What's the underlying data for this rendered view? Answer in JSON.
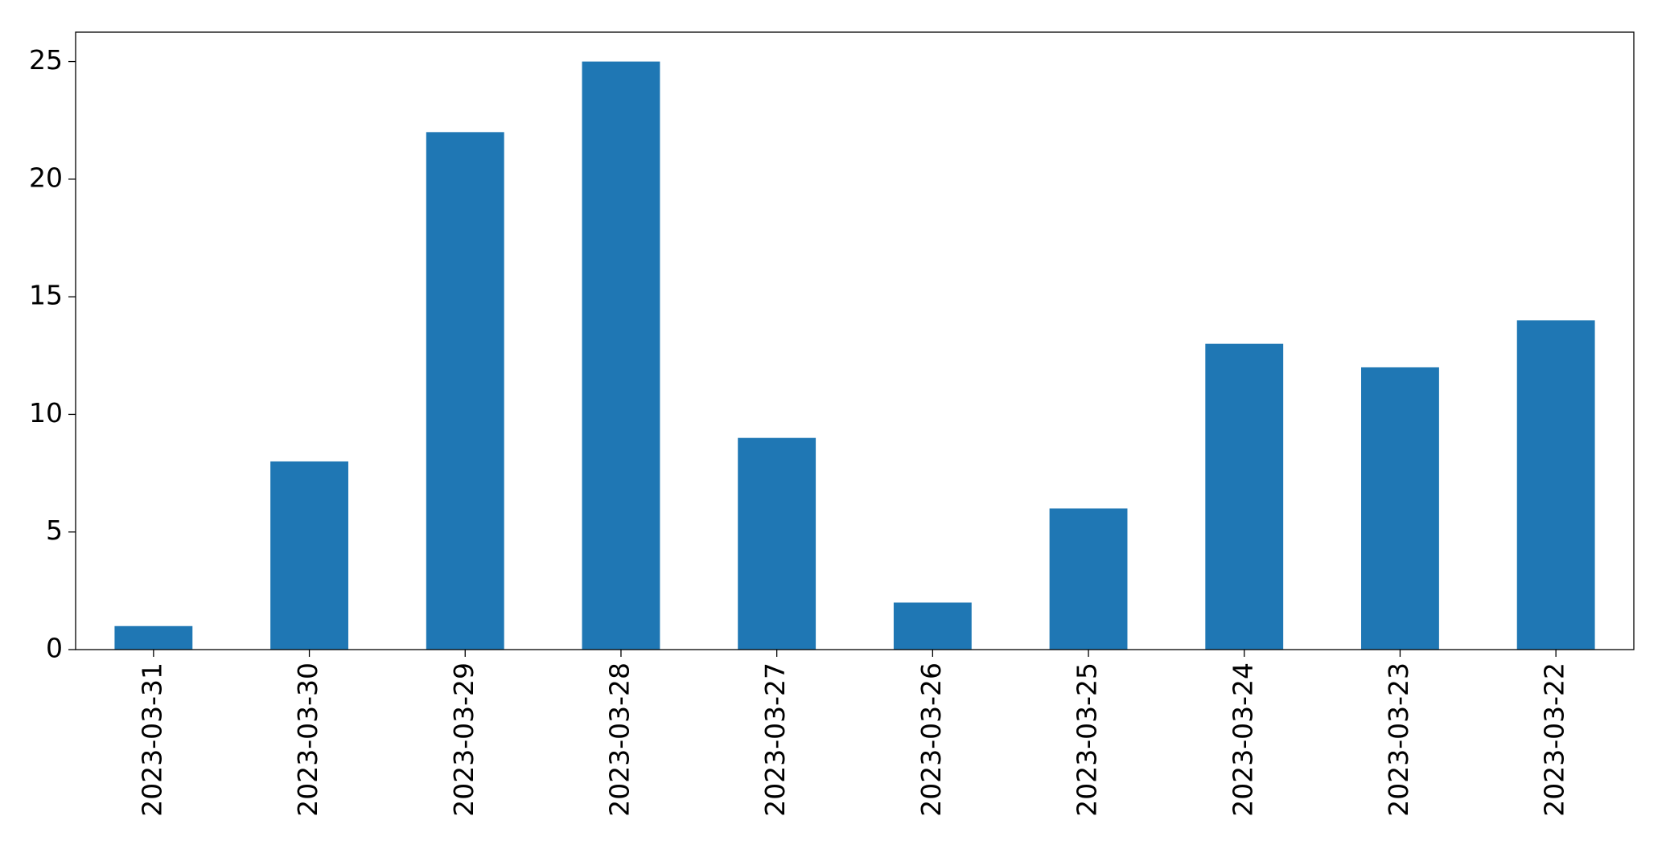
{
  "chart_data": {
    "type": "bar",
    "categories": [
      "2023-03-31",
      "2023-03-30",
      "2023-03-29",
      "2023-03-28",
      "2023-03-27",
      "2023-03-26",
      "2023-03-25",
      "2023-03-24",
      "2023-03-23",
      "2023-03-22"
    ],
    "values": [
      1,
      8,
      22,
      25,
      9,
      2,
      6,
      13,
      12,
      14
    ],
    "color": "#1f77b4",
    "ylim": [
      0,
      26.25
    ],
    "yticks": [
      0,
      5,
      10,
      15,
      20,
      25
    ],
    "grid": false
  }
}
